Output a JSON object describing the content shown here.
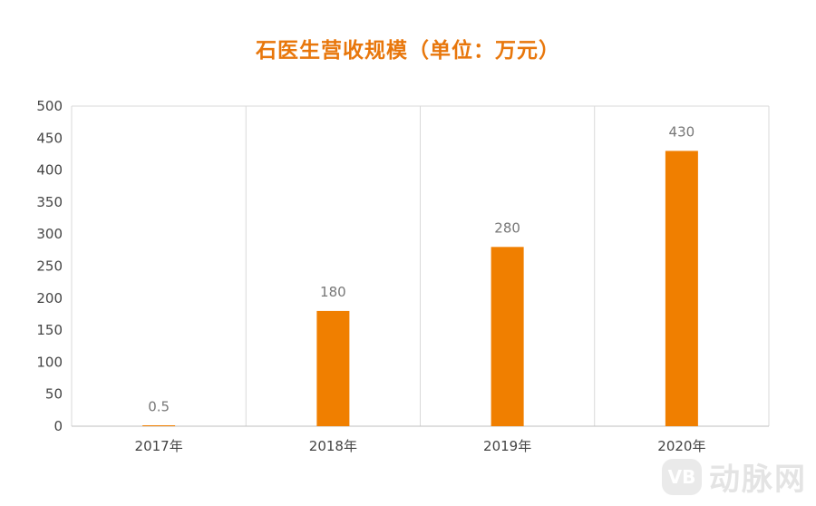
{
  "chart_data": {
    "type": "bar",
    "title": "石医生营收规模（单位：万元）",
    "categories": [
      "2017年",
      "2018年",
      "2019年",
      "2020年"
    ],
    "values": [
      0.5,
      180,
      280,
      430
    ],
    "data_labels": [
      "0.5",
      "180",
      "280",
      "430"
    ],
    "yticks": [
      "0",
      "50",
      "100",
      "150",
      "200",
      "250",
      "300",
      "350",
      "400",
      "450",
      "500"
    ],
    "ylim": [
      0,
      500
    ],
    "xlabel": "",
    "ylabel": "",
    "grid": "vertical",
    "legend": "none",
    "bar_color": "#f07f00"
  },
  "watermark": {
    "badge": "VB",
    "text": "动脉网"
  }
}
